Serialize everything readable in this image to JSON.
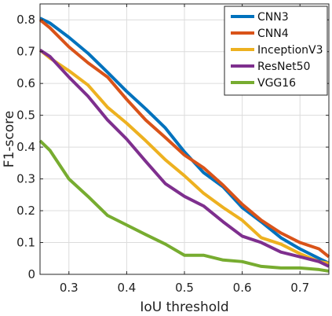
{
  "chart_data": {
    "type": "line",
    "xlabel": "IoU threshold",
    "ylabel": "F1-score",
    "xlim": [
      0.25,
      0.75
    ],
    "ylim": [
      0,
      0.85
    ],
    "xticks": [
      "0.3",
      "0.4",
      "0.5",
      "0.6",
      "0.7"
    ],
    "yticks": [
      "0",
      "0.1",
      "0.2",
      "0.3",
      "0.4",
      "0.5",
      "0.6",
      "0.7",
      "0.8"
    ],
    "grid": true,
    "legend_position": "top-right",
    "x": [
      0.25,
      0.267,
      0.3,
      0.333,
      0.367,
      0.4,
      0.433,
      0.467,
      0.5,
      0.533,
      0.567,
      0.6,
      0.633,
      0.667,
      0.7,
      0.733,
      0.75
    ],
    "series": [
      {
        "name": "CNN3",
        "color": "#0072BD",
        "values": [
          0.805,
          0.79,
          0.745,
          0.695,
          0.635,
          0.575,
          0.52,
          0.46,
          0.385,
          0.32,
          0.275,
          0.21,
          0.165,
          0.115,
          0.08,
          0.05,
          0.035
        ]
      },
      {
        "name": "CNN4",
        "color": "#D95319",
        "values": [
          0.8,
          0.775,
          0.715,
          0.665,
          0.62,
          0.55,
          0.485,
          0.43,
          0.375,
          0.335,
          0.28,
          0.22,
          0.17,
          0.13,
          0.1,
          0.08,
          0.055
        ]
      },
      {
        "name": "InceptionV3",
        "color": "#EDB120",
        "values": [
          0.705,
          0.68,
          0.64,
          0.595,
          0.525,
          0.475,
          0.42,
          0.36,
          0.31,
          0.255,
          0.21,
          0.17,
          0.115,
          0.095,
          0.065,
          0.04,
          0.035
        ]
      },
      {
        "name": "ResNet50",
        "color": "#7E2F8E",
        "values": [
          0.705,
          0.685,
          0.62,
          0.56,
          0.485,
          0.425,
          0.355,
          0.285,
          0.245,
          0.215,
          0.165,
          0.12,
          0.1,
          0.07,
          0.055,
          0.04,
          0.025
        ]
      },
      {
        "name": "VGG16",
        "color": "#77AC30",
        "values": [
          0.42,
          0.39,
          0.3,
          0.245,
          0.185,
          0.155,
          0.125,
          0.095,
          0.06,
          0.06,
          0.045,
          0.04,
          0.025,
          0.02,
          0.02,
          0.015,
          0.01
        ]
      }
    ]
  }
}
